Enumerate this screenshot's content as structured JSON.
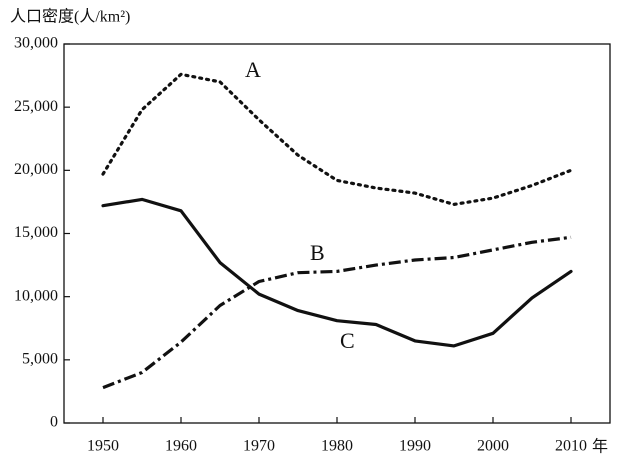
{
  "chart_data": {
    "type": "line",
    "y_label": "人口密度(人/km²)",
    "x_label": "年",
    "x": [
      1950,
      1955,
      1960,
      1965,
      1970,
      1975,
      1980,
      1985,
      1990,
      1995,
      2000,
      2005,
      2010
    ],
    "series": [
      {
        "name": "A",
        "color": "#111111",
        "style": "dotted",
        "values": [
          19700,
          24800,
          27600,
          27000,
          24000,
          21200,
          19200,
          18600,
          18200,
          17300,
          17800,
          18800,
          20000
        ]
      },
      {
        "name": "B",
        "color": "#111111",
        "style": "dashdot",
        "values": [
          2800,
          4000,
          6400,
          9300,
          11200,
          11900,
          12000,
          12500,
          12900,
          13100,
          13700,
          14300,
          14700
        ]
      },
      {
        "name": "C",
        "color": "#111111",
        "style": "solid",
        "values": [
          17200,
          17700,
          16800,
          12700,
          10200,
          8900,
          8100,
          7800,
          6500,
          6100,
          7100,
          9900,
          12000
        ]
      }
    ],
    "xlim": [
      1950,
      2010
    ],
    "xticks": [
      1950,
      1960,
      1970,
      1980,
      1990,
      2000,
      2010
    ],
    "ylim": [
      0,
      30000
    ],
    "yticks": [
      0,
      {
        "value": 5000,
        "label": "5,000"
      },
      {
        "value": 10000,
        "label": "10,000"
      },
      {
        "value": 15000,
        "label": "15,000"
      },
      {
        "value": 20000,
        "label": "20,000"
      },
      {
        "value": 25000,
        "label": "25,000"
      },
      {
        "value": 30000,
        "label": "30,000"
      }
    ],
    "grid": false
  }
}
